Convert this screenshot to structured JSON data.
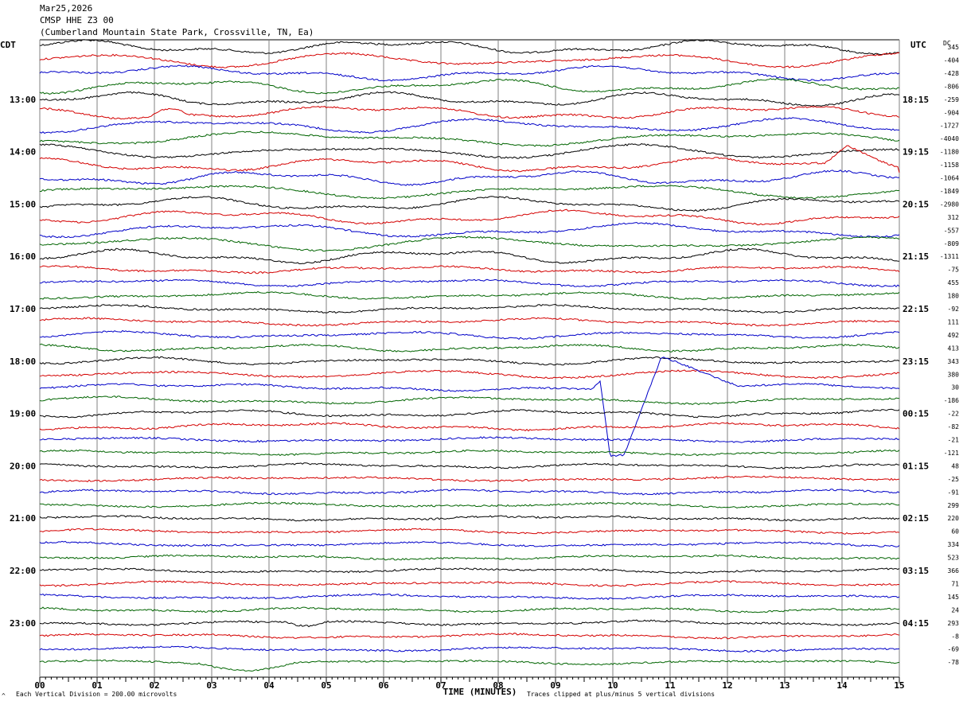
{
  "header": {
    "date": "Mar25,2026",
    "station": "CMSP HHE Z3 00",
    "location": "(Cumberland Mountain State Park, Crossville, TN, Ea)"
  },
  "chart_data": {
    "type": "line",
    "left_axis_label": "CDT",
    "right_axis_label": "UTC",
    "dc_label": "DC",
    "x_ticks": [
      "00",
      "01",
      "02",
      "03",
      "04",
      "05",
      "06",
      "07",
      "08",
      "09",
      "10",
      "11",
      "12",
      "13",
      "14",
      "15"
    ],
    "xlabel": "TIME (MINUTES)",
    "left_hour_labels": [
      "13:00",
      "14:00",
      "15:00",
      "16:00",
      "17:00",
      "18:00",
      "19:00",
      "20:00",
      "21:00",
      "22:00",
      "23:00"
    ],
    "right_hour_labels": [
      "18:15",
      "19:15",
      "20:15",
      "21:15",
      "22:15",
      "23:15",
      "00:15",
      "01:15",
      "02:15",
      "03:15",
      "04:15"
    ],
    "trace_colors": [
      "#000000",
      "#d40000",
      "#0000c8",
      "#006400"
    ],
    "dc_offsets": [
      "345",
      "-404",
      "-428",
      "-806",
      "-259",
      "-904",
      "-1727",
      "-4040",
      "-1180",
      "-1158",
      "-1064",
      "-1849",
      "-2980",
      "312",
      "-557",
      "-809",
      "-1311",
      "-75",
      "455",
      "180",
      "-92",
      "111",
      "492",
      "413",
      "343",
      "380",
      "30",
      "-186",
      "-22",
      "-82",
      "-21",
      "-121",
      "48",
      "-25",
      "-91",
      "299",
      "220",
      "60",
      "334",
      "523",
      "366",
      "71",
      "145",
      "24",
      "293",
      "-8",
      "-69",
      "-78"
    ],
    "footer_left": "Each Vertical Division =  200.00 microvolts",
    "footer_right": "Traces clipped at plus/minus 5 vertical divisions",
    "corner_mark": "^"
  }
}
